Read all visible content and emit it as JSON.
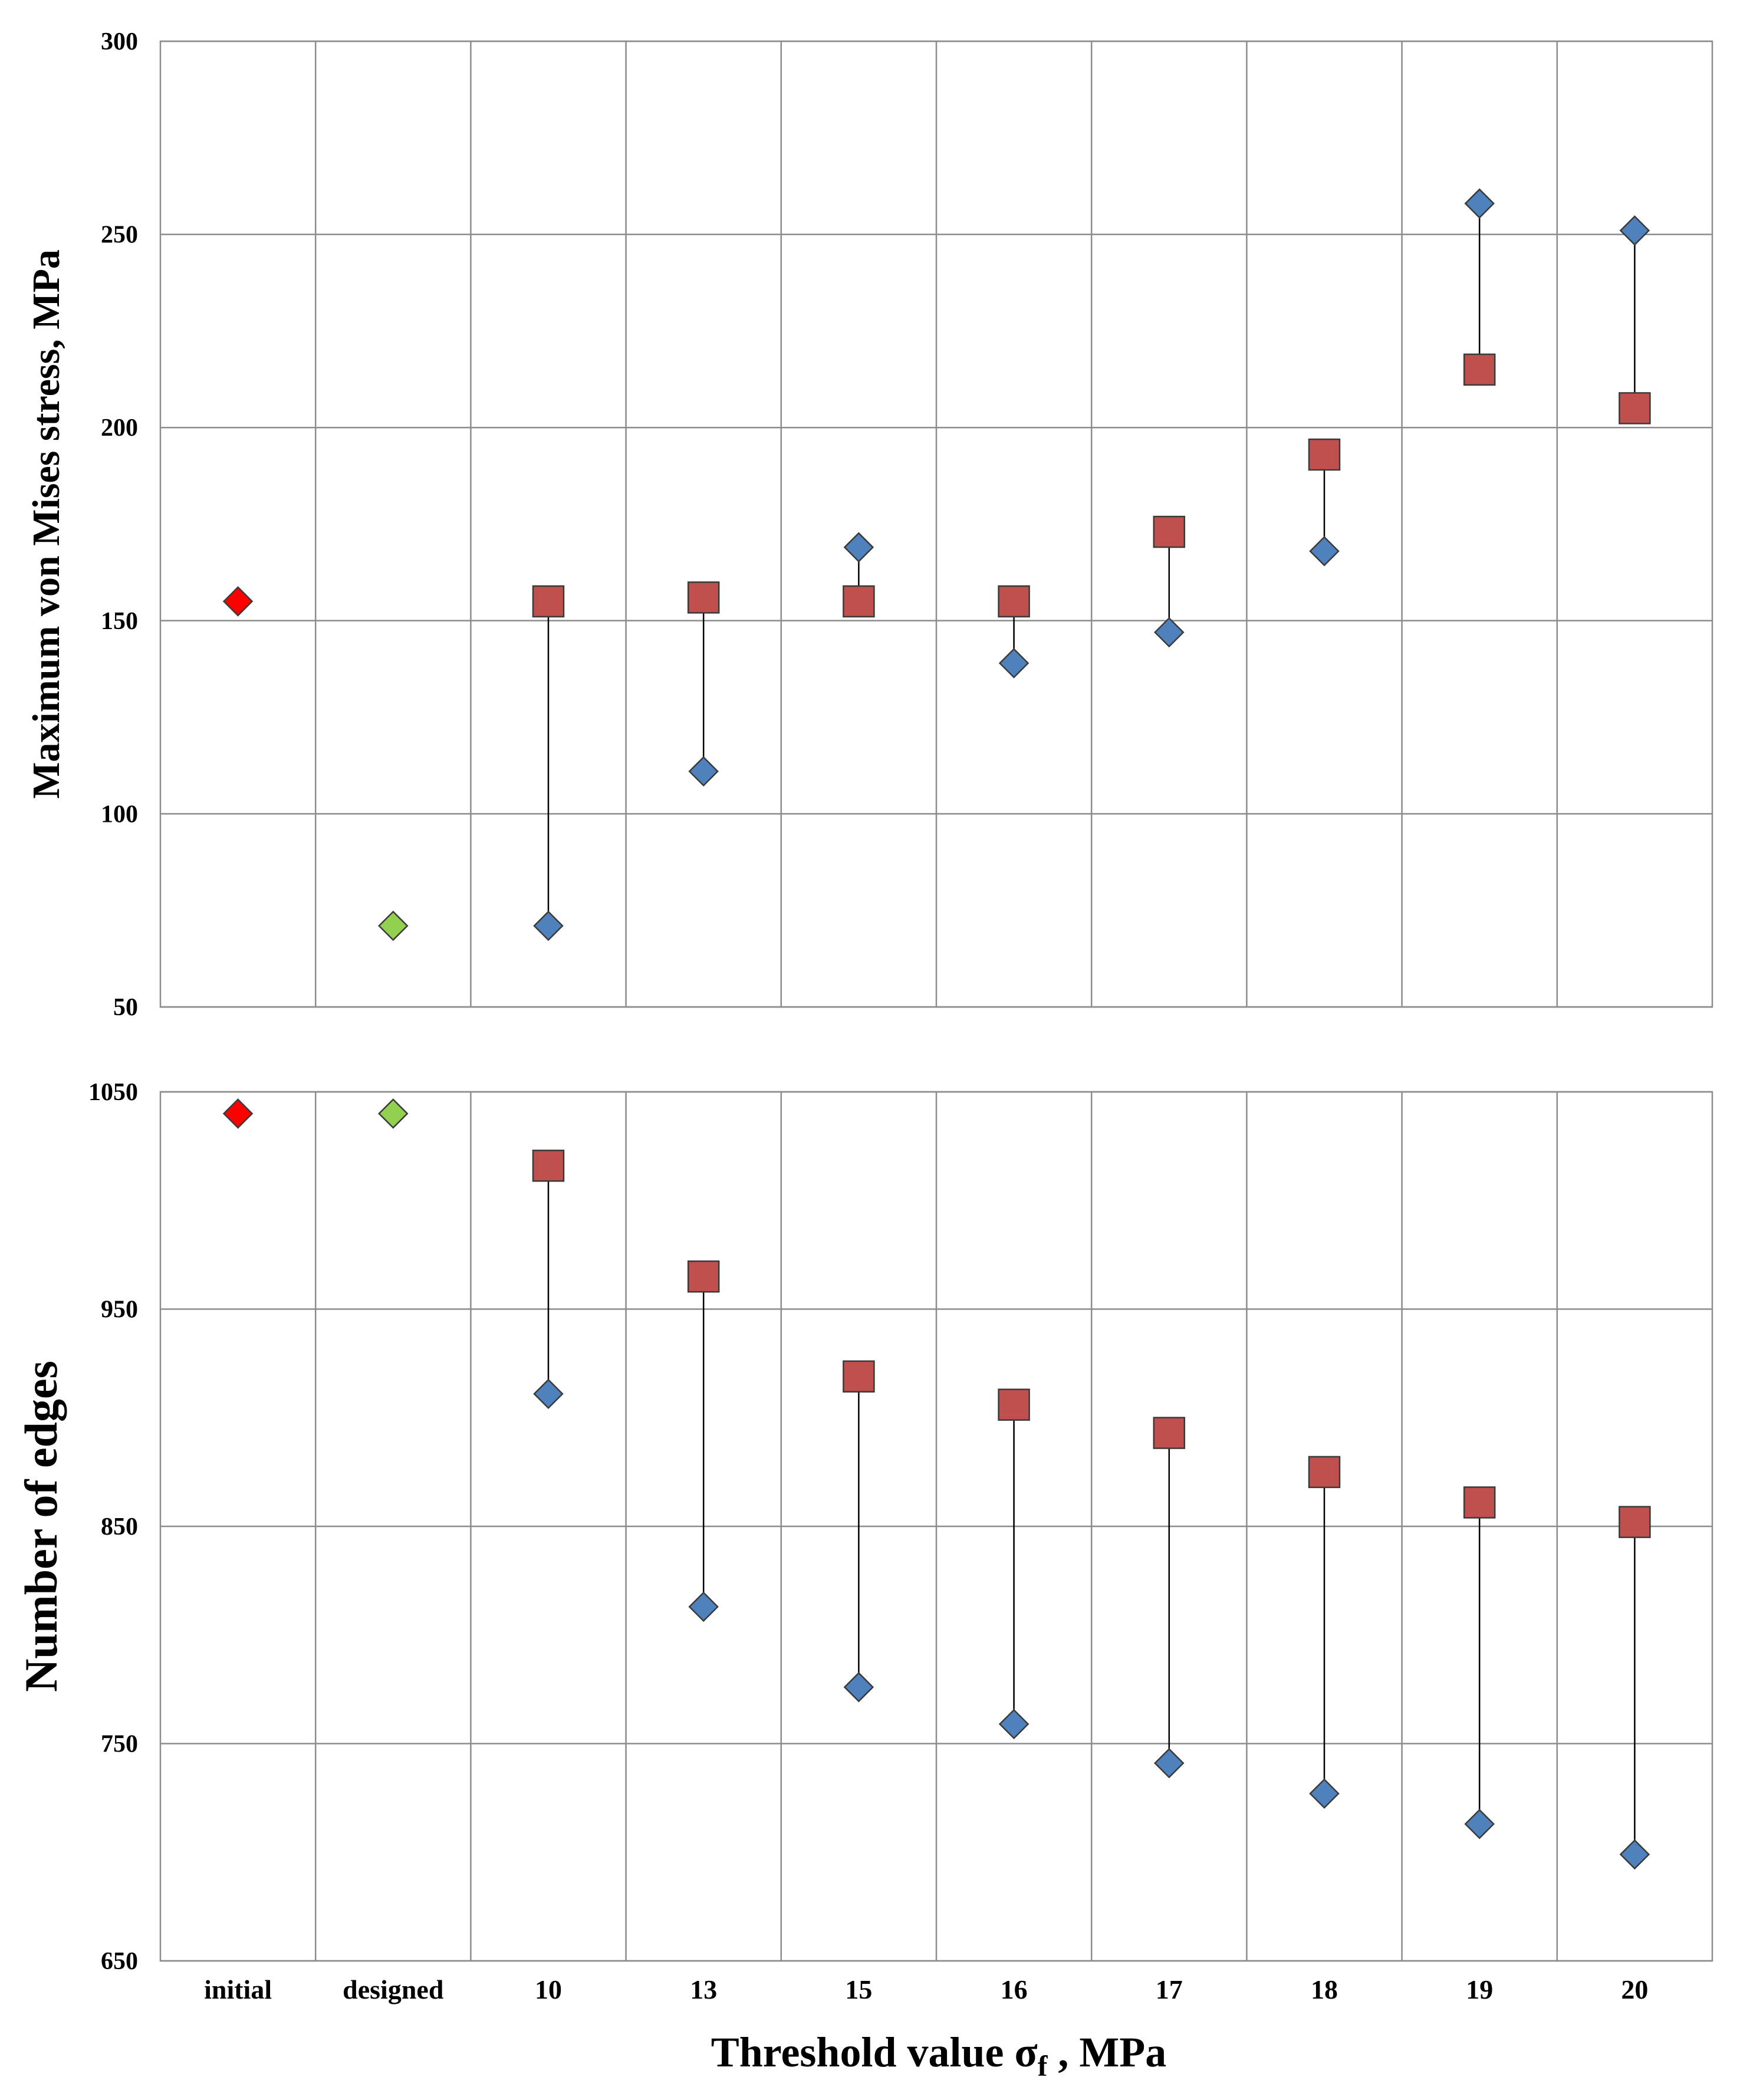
{
  "chart_data": {
    "type": "scatter",
    "categories": [
      "initial",
      "designed",
      "10",
      "13",
      "15",
      "16",
      "17",
      "18",
      "19",
      "20"
    ],
    "xlabel": {
      "main": "Threshold value σ",
      "subscript": "f",
      "suffix": " , MPa"
    },
    "colors": {
      "initial": "#ff0000",
      "designed": "#92d050",
      "blue_series": "#4f81bd",
      "red_series": "#c0504d",
      "grid": "#8c8c8c",
      "connector": "#000000"
    },
    "panels": [
      {
        "name": "stress",
        "ylabel": "Maximum  von Mises stress,  MPa",
        "ylim": [
          50,
          300
        ],
        "yticks": [
          50,
          100,
          150,
          200,
          250,
          300
        ],
        "series": [
          {
            "name": "initial",
            "marker": "diamond",
            "color": "#ff0000",
            "points": [
              {
                "category": "initial",
                "value": 155
              }
            ]
          },
          {
            "name": "designed",
            "marker": "diamond",
            "color": "#92d050",
            "points": [
              {
                "category": "designed",
                "value": 71
              }
            ]
          },
          {
            "name": "diamond series",
            "marker": "diamond",
            "color": "#4f81bd",
            "values": [
              null,
              null,
              71,
              111,
              169,
              139,
              147,
              168,
              258,
              251
            ]
          },
          {
            "name": "square series",
            "marker": "square",
            "color": "#c0504d",
            "values": [
              null,
              null,
              155,
              156,
              155,
              155,
              173,
              193,
              215,
              205
            ]
          }
        ]
      },
      {
        "name": "edges",
        "ylabel": "Number of edges",
        "ylim": [
          650,
          1050
        ],
        "yticks": [
          650,
          750,
          850,
          950,
          1050
        ],
        "series": [
          {
            "name": "initial",
            "marker": "diamond",
            "color": "#ff0000",
            "points": [
              {
                "category": "initial",
                "value": 1040
              }
            ]
          },
          {
            "name": "designed",
            "marker": "diamond",
            "color": "#92d050",
            "points": [
              {
                "category": "designed",
                "value": 1040
              }
            ]
          },
          {
            "name": "diamond series",
            "marker": "diamond",
            "color": "#4f81bd",
            "values": [
              null,
              null,
              911,
              813,
              776,
              759,
              741,
              727,
              713,
              699
            ]
          },
          {
            "name": "square series",
            "marker": "square",
            "color": "#c0504d",
            "values": [
              null,
              null,
              1016,
              965,
              919,
              906,
              893,
              875,
              861,
              852
            ]
          }
        ]
      }
    ]
  }
}
